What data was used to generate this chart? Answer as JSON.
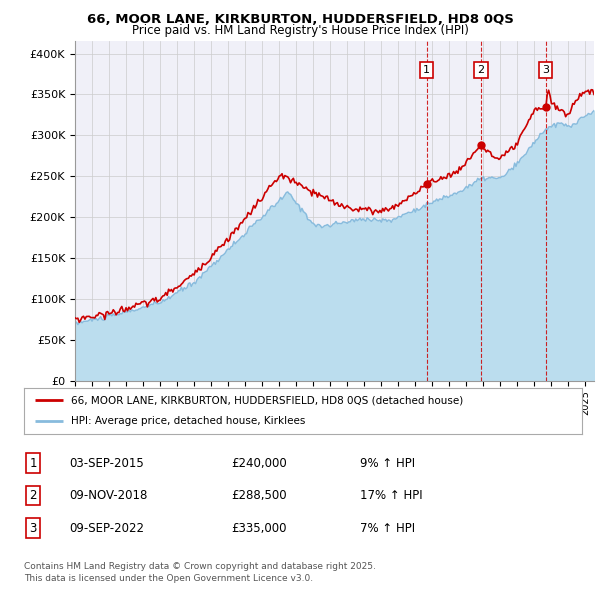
{
  "title1": "66, MOOR LANE, KIRKBURTON, HUDDERSFIELD, HD8 0QS",
  "title2": "Price paid vs. HM Land Registry's House Price Index (HPI)",
  "ylabel_ticks": [
    "£0",
    "£50K",
    "£100K",
    "£150K",
    "£200K",
    "£250K",
    "£300K",
    "£350K",
    "£400K"
  ],
  "ytick_values": [
    0,
    50000,
    100000,
    150000,
    200000,
    250000,
    300000,
    350000,
    400000
  ],
  "ylim": [
    0,
    415000
  ],
  "xlim_start": 1995.0,
  "xlim_end": 2025.5,
  "legend_line1": "66, MOOR LANE, KIRKBURTON, HUDDERSFIELD, HD8 0QS (detached house)",
  "legend_line2": "HPI: Average price, detached house, Kirklees",
  "sale1_date": "03-SEP-2015",
  "sale1_price": "£240,000",
  "sale1_hpi": "9% ↑ HPI",
  "sale1_year": 2015.67,
  "sale1_price_val": 240000,
  "sale2_date": "09-NOV-2018",
  "sale2_price": "£288,500",
  "sale2_hpi": "17% ↑ HPI",
  "sale2_year": 2018.85,
  "sale2_price_val": 288500,
  "sale3_date": "09-SEP-2022",
  "sale3_price": "£335,000",
  "sale3_hpi": "7% ↑ HPI",
  "sale3_year": 2022.67,
  "sale3_price_val": 335000,
  "footer": "Contains HM Land Registry data © Crown copyright and database right 2025.\nThis data is licensed under the Open Government Licence v3.0.",
  "line_color_price": "#cc0000",
  "line_color_hpi": "#88bbdd",
  "fill_color_hpi": "#bbddee",
  "bg_color": "#f0f0f8",
  "grid_color": "#cccccc",
  "vline_color": "#cc0000",
  "box_color": "#cc0000"
}
